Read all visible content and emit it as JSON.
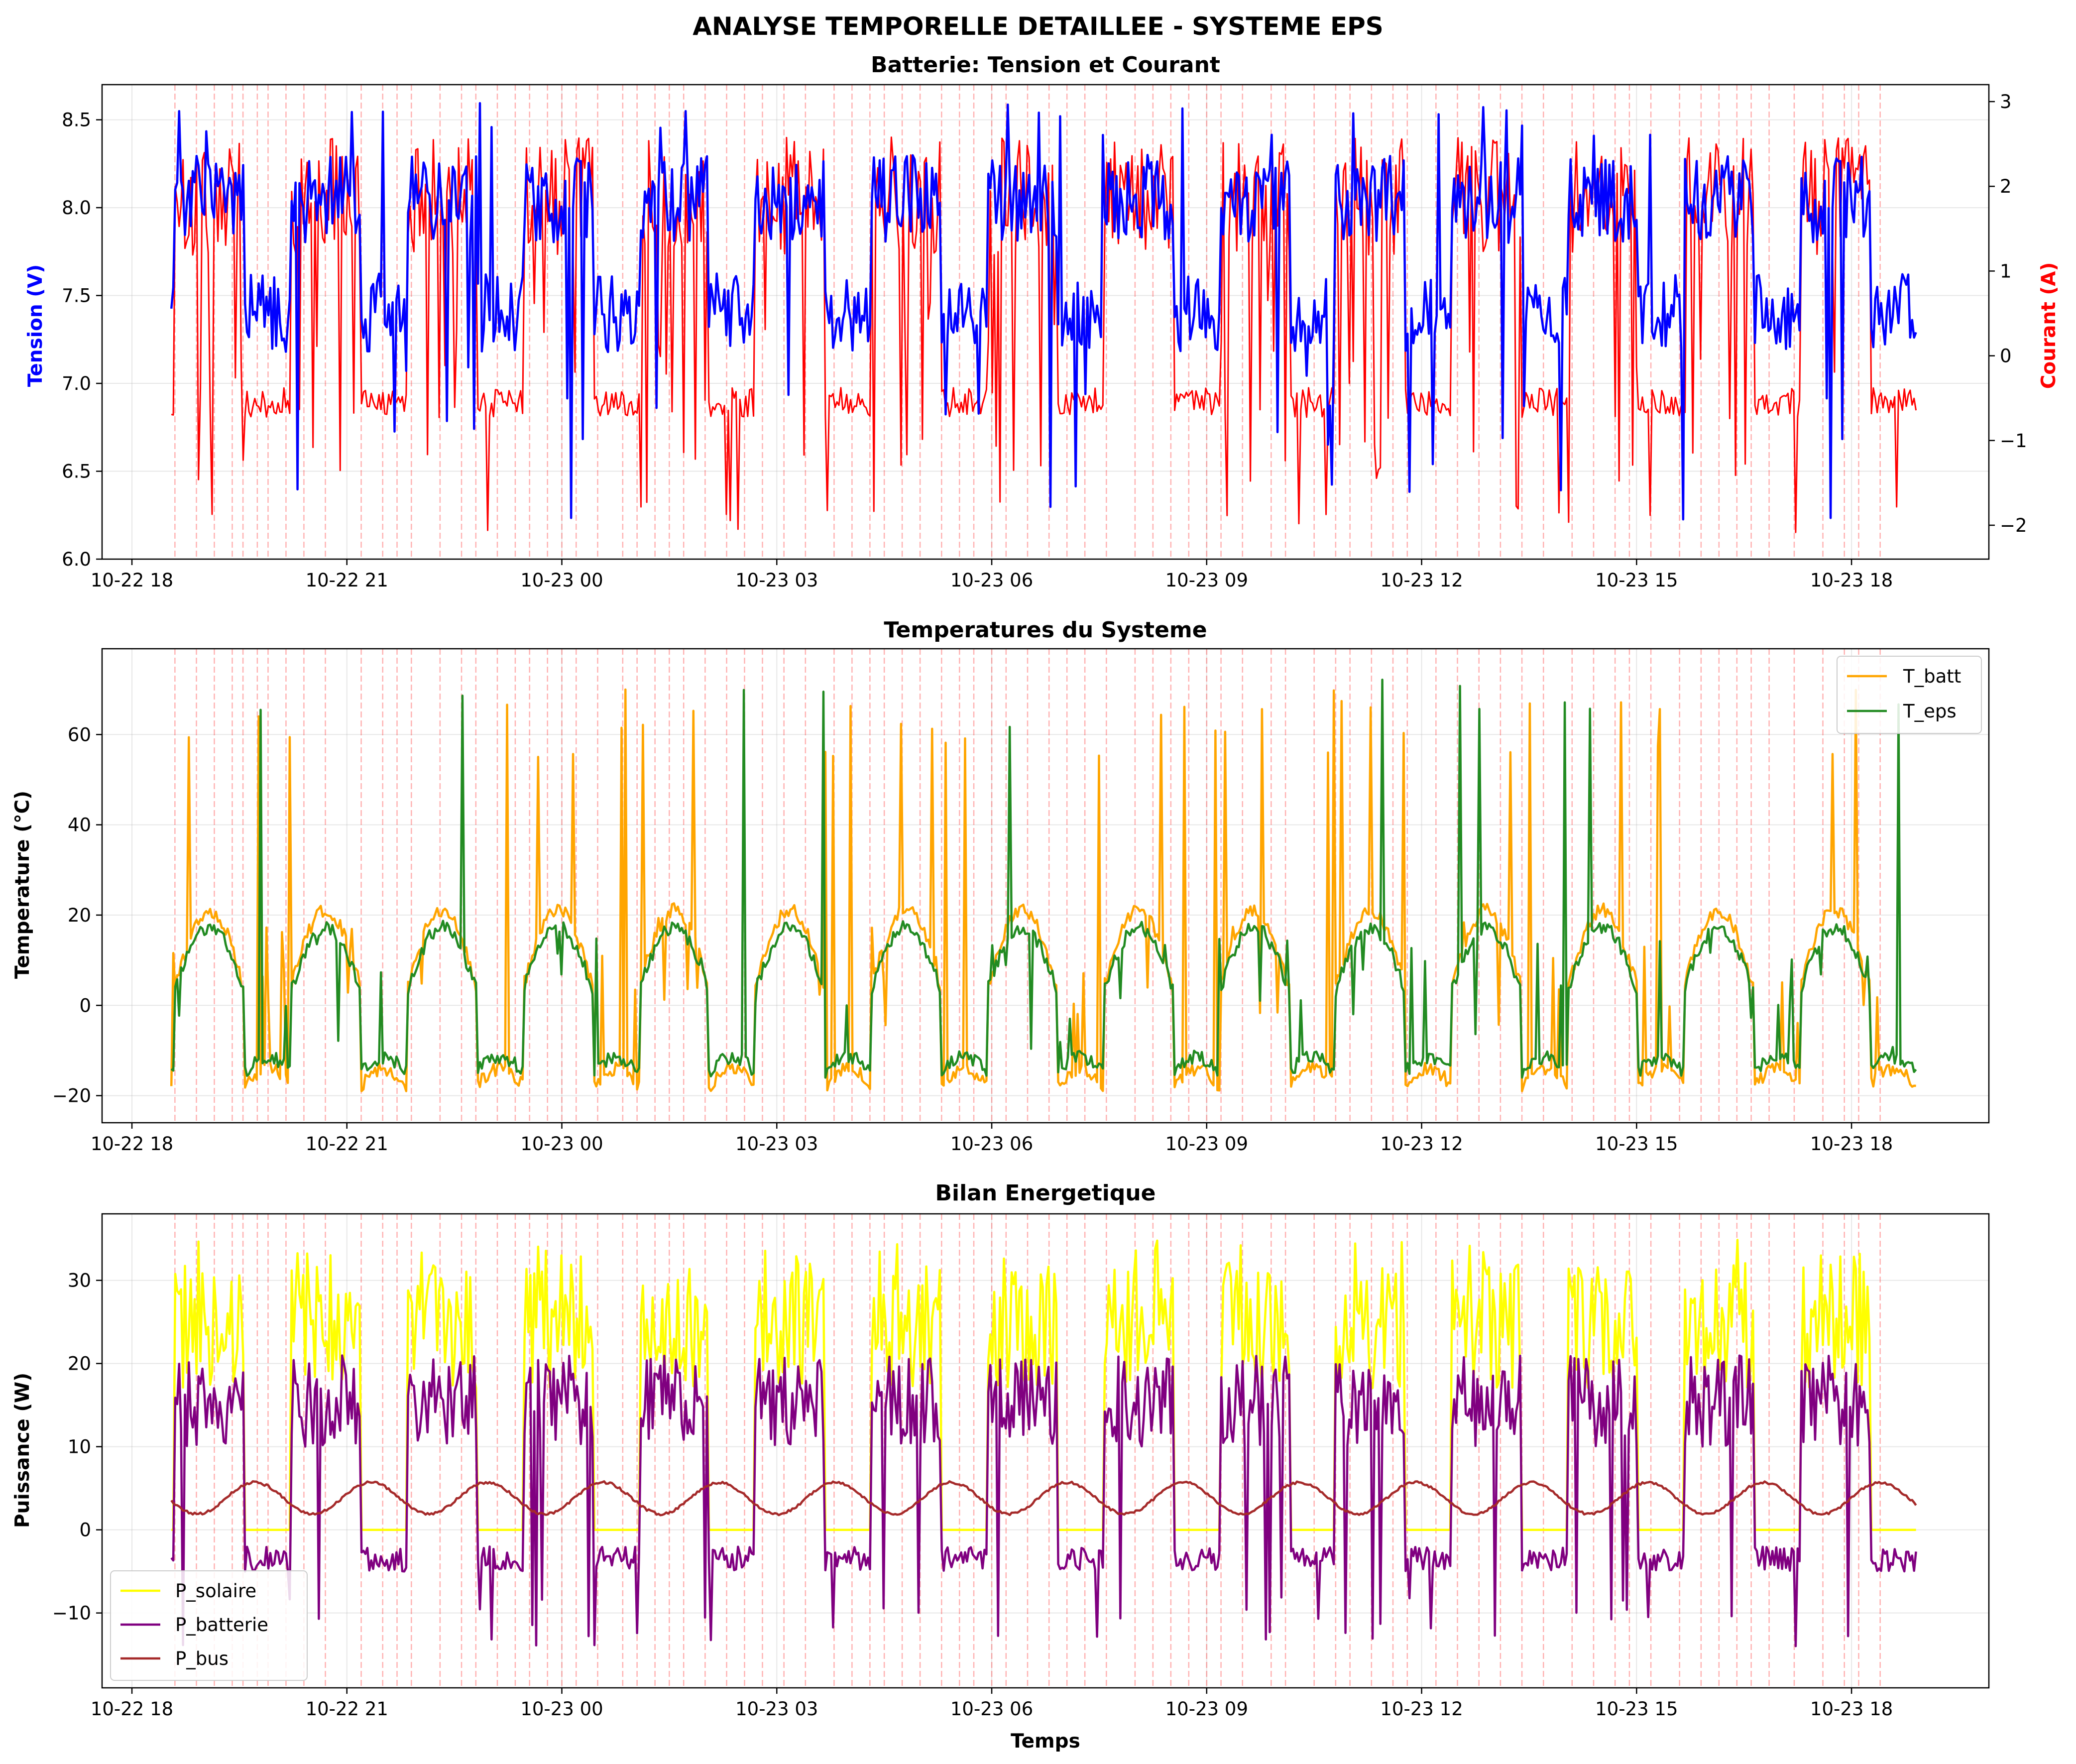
{
  "chart_data": {
    "title": "ANALYSE TEMPORELLE DETAILLEE - SYSTEME EPS",
    "x_axis": {
      "type": "time",
      "range": [
        "2023-10-22 17:35",
        "2023-10-23 19:55"
      ],
      "ticks": [
        "10-22 18",
        "10-22 21",
        "10-23 00",
        "10-23 03",
        "10-23 06",
        "10-23 09",
        "10-23 12",
        "10-23 15",
        "10-23 18"
      ],
      "tick_hours": [
        18,
        21,
        24,
        27,
        30,
        33,
        36,
        39,
        42
      ],
      "label": "Temps"
    },
    "event_markers_hours": [
      18.6,
      18.9,
      19.15,
      19.4,
      19.55,
      19.75,
      19.9,
      20.15,
      20.4,
      20.7,
      21.2,
      21.5,
      21.7,
      21.9,
      22.3,
      22.6,
      22.8,
      23.1,
      23.35,
      23.55,
      23.8,
      24.0,
      24.2,
      24.5,
      24.85,
      25.05,
      25.3,
      25.5,
      25.7,
      26.0,
      26.3,
      26.55,
      26.8,
      27.1,
      27.4,
      27.8,
      28.05,
      28.3,
      28.5,
      28.75,
      29.0,
      29.3,
      29.55,
      29.75,
      30.0,
      30.2,
      30.5,
      30.8,
      31.05,
      31.3,
      31.6,
      32.0,
      32.25,
      32.5,
      32.75,
      33.0,
      33.2,
      33.5,
      33.9,
      34.1,
      34.5,
      34.8,
      35.0,
      35.3,
      35.6,
      35.8,
      36.2,
      36.5,
      36.8,
      37.1,
      37.4,
      37.7,
      38.1,
      38.4,
      38.7,
      38.9,
      39.2,
      39.6,
      39.9,
      40.15,
      40.4,
      40.6,
      40.85,
      41.2,
      41.6,
      41.9,
      42.1,
      42.4
    ],
    "charts": [
      {
        "title": "Batterie: Tension et Courant",
        "type": "line",
        "y_left": {
          "label": "Tension (V)",
          "range": [
            6.0,
            8.7
          ],
          "ticks": [
            "6.0",
            "6.5",
            "7.0",
            "7.5",
            "8.0",
            "8.5"
          ],
          "color": "#0000ff"
        },
        "y_right": {
          "label": "Courant (A)",
          "range": [
            -2.4,
            3.2
          ],
          "ticks": [
            "−2",
            "−1",
            "0",
            "1",
            "2",
            "3"
          ],
          "color": "#ff0000"
        },
        "series": [
          {
            "axis": "left",
            "color": "#0000ff",
            "generator": "battery_voltage",
            "description": "~8.2 V in daylight, ~7.3 V in eclipse, spikes down to 6.1 V"
          },
          {
            "axis": "right",
            "color": "#ff0000",
            "generator": "battery_current",
            "description": "≈2 A charging in daylight, ≈-0.6 A in eclipse, dips to -2.1 A"
          }
        ]
      },
      {
        "title": "Temperatures du Systeme",
        "type": "line",
        "y": {
          "label": "Temperature (°C)",
          "range": [
            -26,
            79
          ],
          "ticks": [
            "−20",
            "0",
            "20",
            "40",
            "60"
          ]
        },
        "legend": "top-right",
        "series": [
          {
            "name": "T_batt",
            "color": "#ffa500",
            "generator": "t_batt",
            "description": "cycles −20 to 22 °C with spikes to ~70 °C"
          },
          {
            "name": "T_eps",
            "color": "#228b22",
            "generator": "t_eps",
            "description": "cycles −15 to 18 °C with spikes to ~75 °C"
          }
        ]
      },
      {
        "title": "Bilan Energetique",
        "type": "line",
        "y": {
          "label": "Puissance (W)",
          "range": [
            -19,
            38
          ],
          "ticks": [
            "−10",
            "0",
            "10",
            "20",
            "30"
          ]
        },
        "x_label": "Temps",
        "legend": "bottom-left",
        "series": [
          {
            "name": "P_solaire",
            "color": "#ffff00",
            "generator": "p_solar",
            "description": "0 W in eclipse, 15–35 W in sunlight"
          },
          {
            "name": "P_batterie",
            "color": "#800080",
            "generator": "p_batt",
            "description": "≈ -4 W in eclipse, up to 21 W in sunlight, dips to -16 W"
          },
          {
            "name": "P_bus",
            "color": "#a52a2a",
            "generator": "p_bus",
            "description": "smooth oscillation 2–6 W"
          }
        ]
      }
    ],
    "orbit": {
      "period_hours": 1.62,
      "sun_fraction": 0.6,
      "t_start": 18.55,
      "t_end": 42.9
    }
  }
}
